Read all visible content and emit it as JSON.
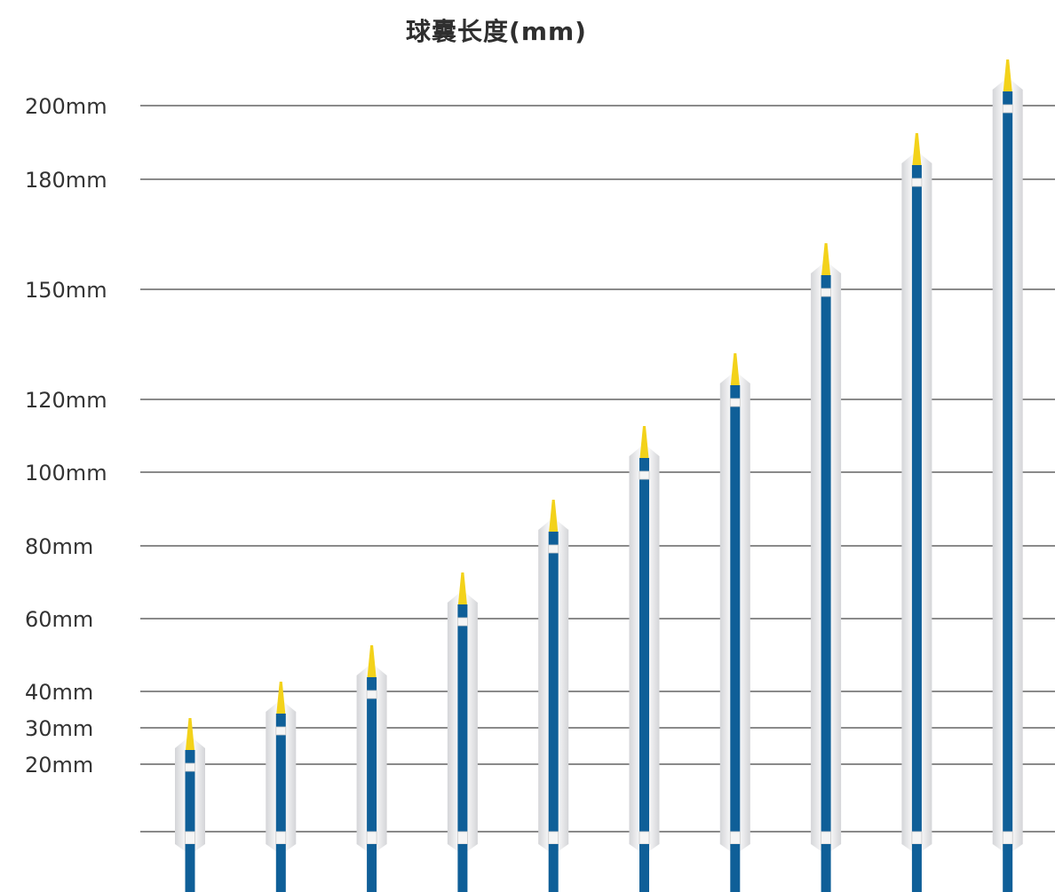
{
  "chart_data": {
    "type": "bar",
    "title": "球囊长度(mm)",
    "xlabel": "",
    "ylabel": "",
    "yticks": [
      {
        "value": 200,
        "label": "200mm"
      },
      {
        "value": 180,
        "label": "180mm"
      },
      {
        "value": 150,
        "label": "150mm"
      },
      {
        "value": 120,
        "label": "120mm"
      },
      {
        "value": 100,
        "label": "100mm"
      },
      {
        "value": 80,
        "label": "80mm"
      },
      {
        "value": 60,
        "label": "60mm"
      },
      {
        "value": 40,
        "label": "40mm"
      },
      {
        "value": 30,
        "label": "30mm"
      },
      {
        "value": 20,
        "label": "20mm"
      }
    ],
    "values": [
      20,
      30,
      40,
      60,
      80,
      100,
      120,
      150,
      180,
      200
    ],
    "grid": true,
    "legend": "none",
    "colors": {
      "shaft": "#0f5f98",
      "tip": "#f3d21a",
      "balloon": "#e6e7e9",
      "marker": "#f5f5f5",
      "gridline": "#8a8a8a",
      "title": "#2f2f2f"
    }
  }
}
